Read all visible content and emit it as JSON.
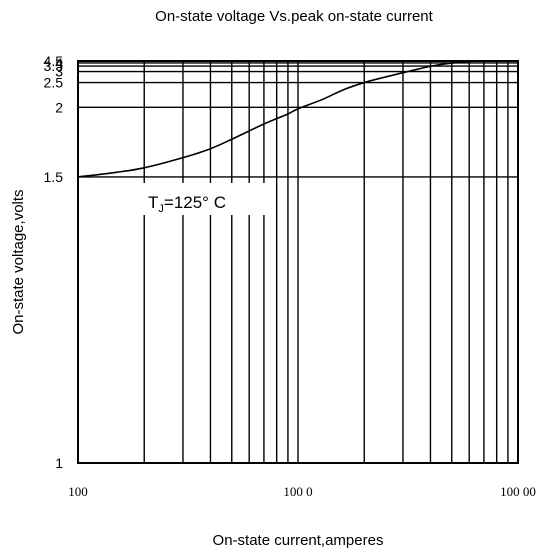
{
  "chart_data": {
    "type": "line",
    "title": "On-state voltage Vs.peak on-state current",
    "xlabel": "On-state current,amperes",
    "ylabel": "On-state voltage,volts",
    "x_scale": "log",
    "xlim": [
      100,
      10000
    ],
    "ylim": [
      1,
      4.5
    ],
    "x_tick_labels": [
      {
        "value": 100,
        "label": "100"
      },
      {
        "value": 1000,
        "label": "100 0"
      },
      {
        "value": 10000,
        "label": "100 00"
      }
    ],
    "y_ticks": [
      1,
      1.5,
      2,
      2.5,
      3,
      3.5,
      4,
      4.5
    ],
    "y_tick_labels": [
      "1",
      "1.5",
      "2",
      "2.5",
      "3",
      "3.5",
      "4",
      "4.5"
    ],
    "grid": true,
    "annotation": {
      "main": "T",
      "sub": "J",
      "rest": "=125° C"
    },
    "series": [
      {
        "x": [
          100,
          150,
          200,
          300,
          400,
          500,
          700,
          900,
          1000,
          1300,
          1600,
          2000,
          2500,
          3000,
          3500,
          4000,
          4500,
          5000,
          5500,
          6000,
          6500
        ],
        "y": [
          1.5,
          1.52,
          1.54,
          1.59,
          1.64,
          1.7,
          1.82,
          1.92,
          1.98,
          2.12,
          2.3,
          2.5,
          2.71,
          2.93,
          3.18,
          3.47,
          3.73,
          3.97,
          4.18,
          4.35,
          4.52
        ]
      }
    ]
  }
}
